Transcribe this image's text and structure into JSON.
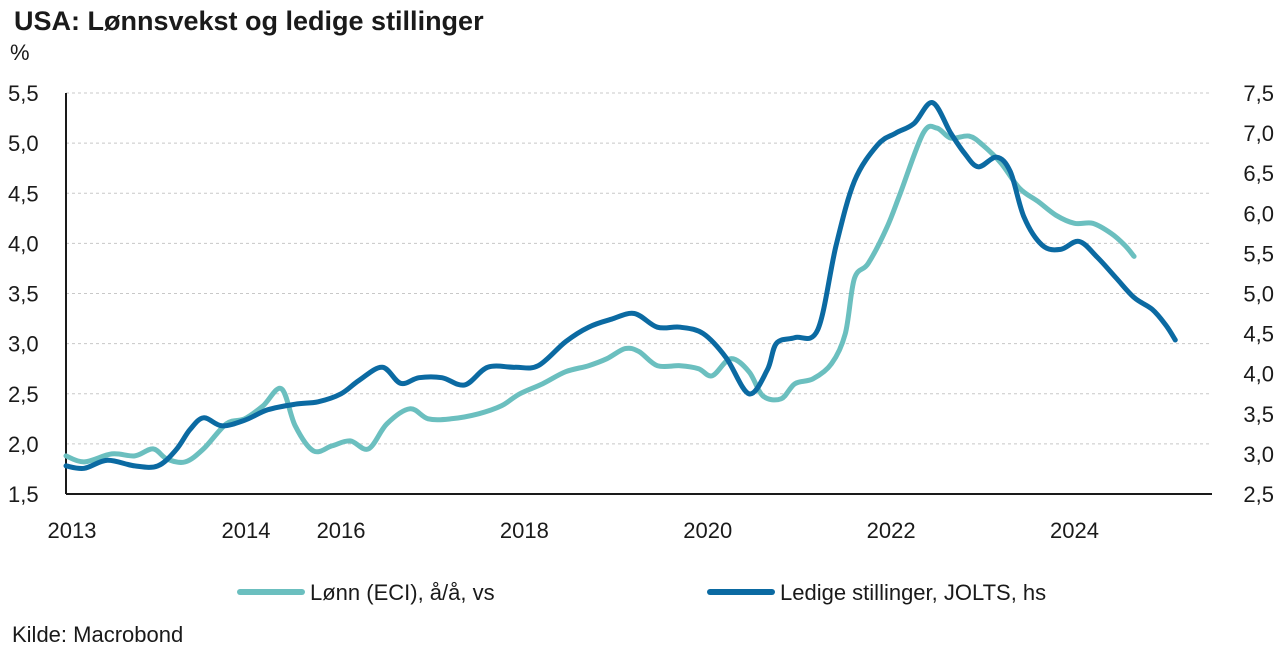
{
  "chart_data": {
    "type": "line",
    "title": "USA: Lønnsvekst og ledige stillinger",
    "unit_label": "%",
    "source": "Kilde: Macrobond",
    "x_ticks": [
      "2013",
      "2014",
      "2016",
      "2018",
      "2020",
      "2022",
      "2024"
    ],
    "y_left_ticks": [
      "1,5",
      "2,0",
      "2,5",
      "3,0",
      "3,5",
      "4,0",
      "4,5",
      "5,0",
      "5,5"
    ],
    "y_right_ticks": [
      "2,5",
      "3,0",
      "3,5",
      "4,0",
      "4,5",
      "5,0",
      "5,5",
      "6,0",
      "6,5",
      "7,0",
      "7,5"
    ],
    "ylim_left": [
      1.5,
      5.5
    ],
    "ylim_right": [
      2.5,
      7.5
    ],
    "grid": "horizontal dashed",
    "legend_position": "bottom",
    "colors": {
      "eci": "#6bbfbf",
      "jolts": "#0b6aa2",
      "axis": "#1a1a1a",
      "grid": "#c8c8c8"
    },
    "series": [
      {
        "name": "Lønn (ECI), å/å, vs",
        "axis": "left",
        "points": [
          [
            2013.0,
            1.88
          ],
          [
            2013.2,
            1.82
          ],
          [
            2013.5,
            1.9
          ],
          [
            2013.75,
            1.88
          ],
          [
            2013.95,
            1.95
          ],
          [
            2014.1,
            1.85
          ],
          [
            2014.3,
            1.82
          ],
          [
            2014.5,
            1.95
          ],
          [
            2014.75,
            2.2
          ],
          [
            2014.95,
            2.25
          ],
          [
            2015.15,
            2.38
          ],
          [
            2015.35,
            2.55
          ],
          [
            2015.5,
            2.18
          ],
          [
            2015.7,
            1.93
          ],
          [
            2015.9,
            1.98
          ],
          [
            2016.1,
            2.03
          ],
          [
            2016.3,
            1.95
          ],
          [
            2016.5,
            2.2
          ],
          [
            2016.75,
            2.35
          ],
          [
            2016.95,
            2.25
          ],
          [
            2017.2,
            2.25
          ],
          [
            2017.5,
            2.3
          ],
          [
            2017.75,
            2.38
          ],
          [
            2017.95,
            2.5
          ],
          [
            2018.2,
            2.6
          ],
          [
            2018.45,
            2.72
          ],
          [
            2018.7,
            2.78
          ],
          [
            2018.9,
            2.85
          ],
          [
            2019.1,
            2.95
          ],
          [
            2019.25,
            2.92
          ],
          [
            2019.45,
            2.78
          ],
          [
            2019.7,
            2.78
          ],
          [
            2019.9,
            2.75
          ],
          [
            2020.05,
            2.68
          ],
          [
            2020.25,
            2.85
          ],
          [
            2020.45,
            2.72
          ],
          [
            2020.6,
            2.48
          ],
          [
            2020.8,
            2.45
          ],
          [
            2020.95,
            2.6
          ],
          [
            2021.15,
            2.65
          ],
          [
            2021.35,
            2.8
          ],
          [
            2021.5,
            3.1
          ],
          [
            2021.6,
            3.65
          ],
          [
            2021.75,
            3.8
          ],
          [
            2021.95,
            4.15
          ],
          [
            2022.1,
            4.5
          ],
          [
            2022.35,
            5.1
          ],
          [
            2022.5,
            5.15
          ],
          [
            2022.65,
            5.05
          ],
          [
            2022.85,
            5.07
          ],
          [
            2023.0,
            4.98
          ],
          [
            2023.2,
            4.8
          ],
          [
            2023.4,
            4.55
          ],
          [
            2023.6,
            4.42
          ],
          [
            2023.8,
            4.28
          ],
          [
            2024.0,
            4.2
          ],
          [
            2024.2,
            4.2
          ],
          [
            2024.4,
            4.1
          ],
          [
            2024.55,
            3.98
          ],
          [
            2024.65,
            3.87
          ]
        ]
      },
      {
        "name": "Ledige stillinger, JOLTS, hs",
        "axis": "right",
        "points": [
          [
            2013.0,
            2.85
          ],
          [
            2013.2,
            2.82
          ],
          [
            2013.45,
            2.92
          ],
          [
            2013.75,
            2.85
          ],
          [
            2014.0,
            2.85
          ],
          [
            2014.2,
            3.05
          ],
          [
            2014.35,
            3.3
          ],
          [
            2014.5,
            3.45
          ],
          [
            2014.7,
            3.35
          ],
          [
            2014.95,
            3.42
          ],
          [
            2015.2,
            3.55
          ],
          [
            2015.5,
            3.62
          ],
          [
            2015.75,
            3.65
          ],
          [
            2016.0,
            3.75
          ],
          [
            2016.2,
            3.92
          ],
          [
            2016.45,
            4.08
          ],
          [
            2016.65,
            3.88
          ],
          [
            2016.85,
            3.95
          ],
          [
            2017.1,
            3.95
          ],
          [
            2017.35,
            3.86
          ],
          [
            2017.6,
            4.08
          ],
          [
            2017.9,
            4.08
          ],
          [
            2018.15,
            4.1
          ],
          [
            2018.45,
            4.4
          ],
          [
            2018.7,
            4.58
          ],
          [
            2018.95,
            4.68
          ],
          [
            2019.2,
            4.75
          ],
          [
            2019.45,
            4.58
          ],
          [
            2019.7,
            4.58
          ],
          [
            2019.95,
            4.5
          ],
          [
            2020.2,
            4.2
          ],
          [
            2020.45,
            3.75
          ],
          [
            2020.65,
            4.05
          ],
          [
            2020.75,
            4.38
          ],
          [
            2020.95,
            4.45
          ],
          [
            2021.2,
            4.55
          ],
          [
            2021.4,
            5.6
          ],
          [
            2021.6,
            6.4
          ],
          [
            2021.85,
            6.85
          ],
          [
            2022.05,
            7.0
          ],
          [
            2022.25,
            7.12
          ],
          [
            2022.45,
            7.38
          ],
          [
            2022.65,
            7.0
          ],
          [
            2022.8,
            6.75
          ],
          [
            2022.95,
            6.58
          ],
          [
            2023.15,
            6.7
          ],
          [
            2023.3,
            6.52
          ],
          [
            2023.45,
            5.95
          ],
          [
            2023.65,
            5.6
          ],
          [
            2023.85,
            5.55
          ],
          [
            2024.05,
            5.65
          ],
          [
            2024.25,
            5.45
          ],
          [
            2024.45,
            5.2
          ],
          [
            2024.65,
            4.95
          ],
          [
            2024.85,
            4.8
          ],
          [
            2025.0,
            4.6
          ],
          [
            2025.1,
            4.42
          ]
        ]
      }
    ]
  }
}
